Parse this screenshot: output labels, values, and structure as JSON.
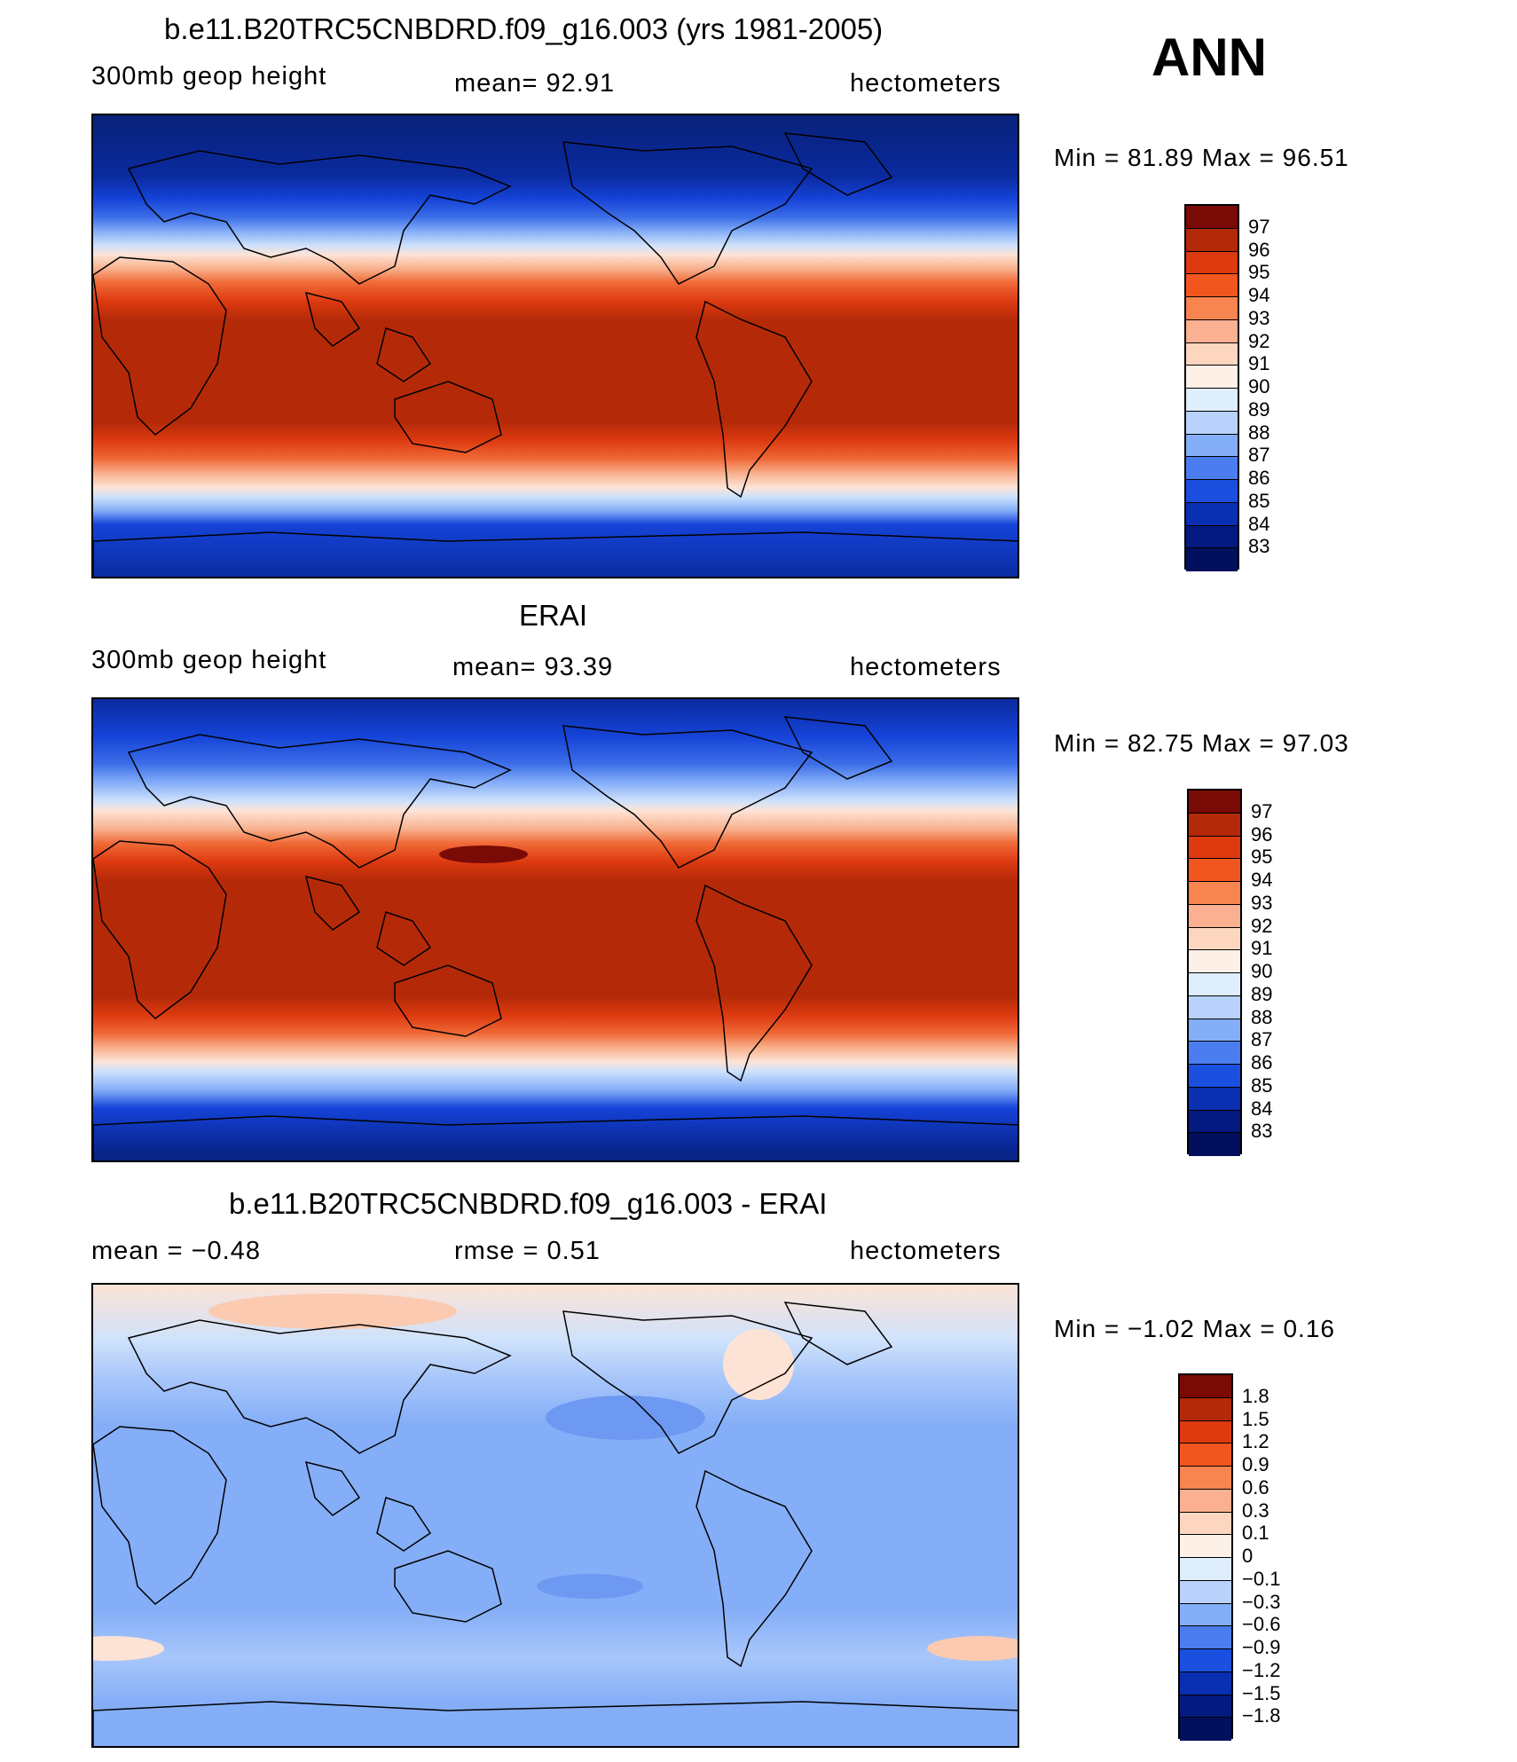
{
  "season": "ANN",
  "panels": [
    {
      "title": "b.e11.B20TRC5CNBDRD.f09_g16.003 (yrs 1981-2005)",
      "left": "300mb geop height",
      "center": "mean=   92.91",
      "right": "hectometers",
      "minmax": "Min =   81.89 Max =   96.51",
      "colorbar_labels": [
        "97",
        "96",
        "95",
        "94",
        "93",
        "92",
        "91",
        "90",
        "89",
        "88",
        "87",
        "86",
        "85",
        "84",
        "83"
      ],
      "color_stops": [
        [
          0.0,
          "#08217a"
        ],
        [
          0.13,
          "#0a2a9e"
        ],
        [
          0.18,
          "#1543d8"
        ],
        [
          0.22,
          "#3d6fe8"
        ],
        [
          0.25,
          "#85aef8"
        ],
        [
          0.28,
          "#cfe2fb"
        ],
        [
          0.3,
          "#fde3d6"
        ],
        [
          0.33,
          "#f8b08c"
        ],
        [
          0.36,
          "#f06a38"
        ],
        [
          0.4,
          "#dd3a10"
        ],
        [
          0.44,
          "#b42a08"
        ],
        [
          0.66,
          "#b42a08"
        ],
        [
          0.7,
          "#dd3a10"
        ],
        [
          0.74,
          "#f06a38"
        ],
        [
          0.77,
          "#f8b08c"
        ],
        [
          0.8,
          "#fde3d6"
        ],
        [
          0.82,
          "#cfe2fb"
        ],
        [
          0.85,
          "#85aef8"
        ],
        [
          0.88,
          "#1543d8"
        ],
        [
          1.0,
          "#0a2a9e"
        ]
      ]
    },
    {
      "title": "ERAI",
      "left": "300mb geop height",
      "center": "mean=   93.39",
      "right": "hectometers",
      "minmax": "Min =   82.75 Max =   97.03",
      "colorbar_labels": [
        "97",
        "96",
        "95",
        "94",
        "93",
        "92",
        "91",
        "90",
        "89",
        "88",
        "87",
        "86",
        "85",
        "84",
        "83"
      ],
      "color_stops": [
        [
          0.0,
          "#0a2a9e"
        ],
        [
          0.08,
          "#1543d8"
        ],
        [
          0.14,
          "#3d6fe8"
        ],
        [
          0.18,
          "#85aef8"
        ],
        [
          0.22,
          "#cfe2fb"
        ],
        [
          0.24,
          "#fde3d6"
        ],
        [
          0.28,
          "#f8b08c"
        ],
        [
          0.31,
          "#f06a38"
        ],
        [
          0.35,
          "#dd3a10"
        ],
        [
          0.39,
          "#b42a08"
        ],
        [
          0.64,
          "#b42a08"
        ],
        [
          0.68,
          "#dd3a10"
        ],
        [
          0.72,
          "#f06a38"
        ],
        [
          0.75,
          "#f8b08c"
        ],
        [
          0.78,
          "#fde3d6"
        ],
        [
          0.8,
          "#cfe2fb"
        ],
        [
          0.84,
          "#85aef8"
        ],
        [
          0.88,
          "#1543d8"
        ],
        [
          0.95,
          "#0a2a9e"
        ],
        [
          1.0,
          "#08217a"
        ]
      ]
    },
    {
      "title": "b.e11.B20TRC5CNBDRD.f09_g16.003 - ERAI",
      "left": "mean =   −0.48",
      "center": "rmse =    0.51",
      "right": "hectometers",
      "minmax": "Min =   −1.02 Max =    0.16",
      "colorbar_labels": [
        "1.8",
        "1.5",
        "1.2",
        "0.9",
        "0.6",
        "0.3",
        "0.1",
        "0",
        "−0.1",
        "−0.3",
        "−0.6",
        "−0.9",
        "−1.2",
        "−1.5",
        "−1.8"
      ],
      "color_stops": [
        [
          0.0,
          "#fde3d6"
        ],
        [
          0.12,
          "#cfe2fb"
        ],
        [
          0.2,
          "#a8c6fa"
        ],
        [
          0.3,
          "#85aef8"
        ],
        [
          0.7,
          "#85aef8"
        ],
        [
          0.8,
          "#a8c6fa"
        ],
        [
          0.9,
          "#85aef8"
        ],
        [
          1.0,
          "#85aef8"
        ]
      ]
    }
  ],
  "colorbar_colors": [
    "#7a0a05",
    "#b42a08",
    "#dd3a10",
    "#f2561f",
    "#f8844f",
    "#fbb092",
    "#fdd6c0",
    "#fdf0e6",
    "#dfeefc",
    "#b8d2fb",
    "#85aef8",
    "#4b7df0",
    "#1a4fe0",
    "#0a2fb0",
    "#041a80",
    "#020f5c"
  ]
}
